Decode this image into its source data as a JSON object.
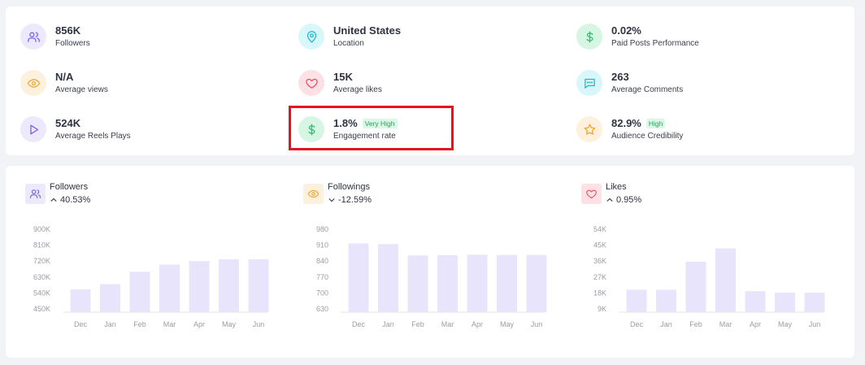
{
  "colors": {
    "bar": "#e7e4fb",
    "axis": "#e4e5ea",
    "purple_bg": "#ece9fc",
    "purple_fg": "#7b5cf0",
    "teal_bg": "#d8f7fa",
    "teal_fg": "#1fb9cc",
    "green_bg": "#d6f5e3",
    "green_fg": "#2cbf73",
    "orange_bg": "#fdf0dc",
    "orange_fg": "#f0a531",
    "red_bg": "#fde1e4",
    "red_fg": "#ec4e63"
  },
  "stats": [
    {
      "value": "856K",
      "label": "Followers",
      "icon": "users-icon"
    },
    {
      "value": "United States",
      "label": "Location",
      "icon": "location-pin-icon"
    },
    {
      "value": "0.02%",
      "label": "Paid Posts Performance",
      "icon": "dollar-icon"
    },
    {
      "value": "N/A",
      "label": "Average views",
      "icon": "eye-icon"
    },
    {
      "value": "15K",
      "label": "Average likes",
      "icon": "heart-icon"
    },
    {
      "value": "263",
      "label": "Average Comments",
      "icon": "comment-icon"
    },
    {
      "value": "524K",
      "label": "Average Reels Plays",
      "icon": "play-icon"
    },
    {
      "value": "1.8%",
      "label": "Engagement rate",
      "icon": "dollar-icon",
      "badge": "Very High"
    },
    {
      "value": "82.9%",
      "label": "Audience Credibility",
      "icon": "star-icon",
      "badge": "High"
    }
  ],
  "chart_data": [
    {
      "type": "bar",
      "title": "Followers",
      "change": "40.53%",
      "change_direction": "up",
      "icon": "users-icon",
      "categories": [
        "Dec",
        "Jan",
        "Feb",
        "Mar",
        "Apr",
        "May",
        "Jun"
      ],
      "values": [
        560000,
        590000,
        660000,
        700000,
        720000,
        730000,
        730000
      ],
      "yticks": [
        "900K",
        "810K",
        "720K",
        "630K",
        "540K",
        "450K"
      ],
      "ylim": [
        450000,
        900000
      ]
    },
    {
      "type": "bar",
      "title": "Followings",
      "change": "-12.59%",
      "change_direction": "down",
      "icon": "eye-icon",
      "categories": [
        "Dec",
        "Jan",
        "Feb",
        "Mar",
        "Apr",
        "May",
        "Jun"
      ],
      "values": [
        918,
        915,
        865,
        866,
        868,
        867,
        867
      ],
      "yticks": [
        "980",
        "910",
        "840",
        "770",
        "700",
        "630"
      ],
      "ylim": [
        630,
        980
      ]
    },
    {
      "type": "bar",
      "title": "Likes",
      "change": "0.95%",
      "change_direction": "up",
      "icon": "heart-icon",
      "categories": [
        "Dec",
        "Jan",
        "Feb",
        "Mar",
        "Apr",
        "May",
        "Jun"
      ],
      "values": [
        13000,
        13000,
        32000,
        41000,
        12000,
        11000,
        11000
      ],
      "yticks": [
        "54K",
        "45K",
        "36K",
        "27K",
        "18K",
        "9K"
      ],
      "ylim": [
        0,
        54000
      ]
    }
  ]
}
